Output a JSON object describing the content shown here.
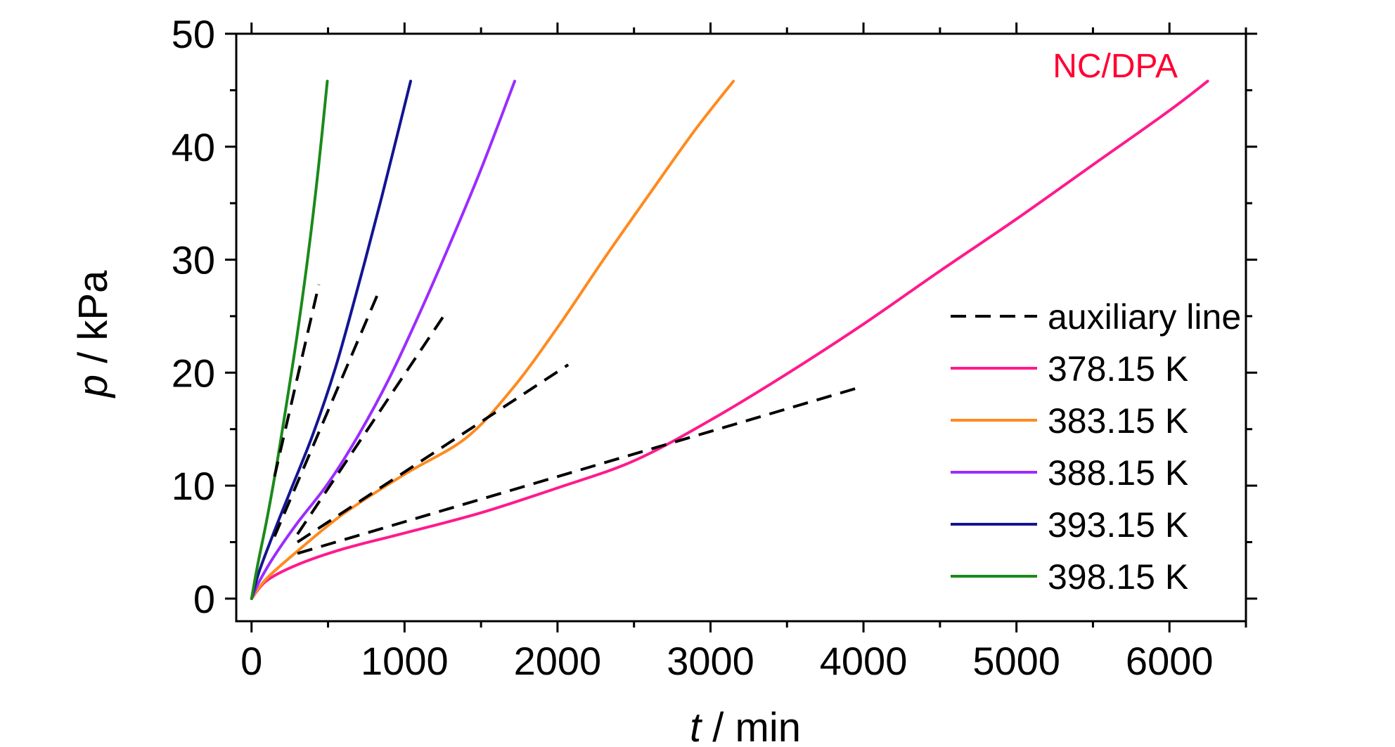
{
  "chart_data": {
    "type": "line",
    "xlabel": {
      "var": "t",
      "rest": " / min"
    },
    "ylabel": {
      "var": "p",
      "rest": " / kPa"
    },
    "xlim": [
      -100,
      6500
    ],
    "ylim": [
      -2,
      50
    ],
    "xticks": [
      0,
      1000,
      2000,
      3000,
      4000,
      5000,
      6000
    ],
    "xtick_labels": [
      "0",
      "1000",
      "2000",
      "3000",
      "4000",
      "5000",
      "6000"
    ],
    "yticks": [
      0,
      10,
      20,
      30,
      40,
      50
    ],
    "ytick_labels": [
      "0",
      "10",
      "20",
      "30",
      "40",
      "50"
    ],
    "x_minor_step": 500,
    "y_minor_step": 5,
    "grid": false,
    "legend_position": "right",
    "annotation": {
      "text": "NC/DPA",
      "color": "#ff0033"
    },
    "series": [
      {
        "name": "378.15 K",
        "color": "#ff1a8c",
        "style": "solid",
        "x": [
          0,
          100,
          300,
          600,
          1000,
          1500,
          2000,
          2500,
          3000,
          3500,
          4000,
          4500,
          5000,
          5500,
          6000,
          6250
        ],
        "y": [
          0,
          1.6,
          3.0,
          4.4,
          5.8,
          7.6,
          9.8,
          12.2,
          15.8,
          19.9,
          24.3,
          29.0,
          33.6,
          38.4,
          43.2,
          45.8
        ]
      },
      {
        "name": "383.15 K",
        "color": "#ff8a1f",
        "style": "solid",
        "x": [
          0,
          100,
          300,
          600,
          1000,
          1400,
          1700,
          2000,
          2300,
          2600,
          2900,
          3150
        ],
        "y": [
          0,
          1.8,
          4.2,
          7.5,
          11.0,
          14.2,
          18.5,
          24.0,
          30.0,
          35.8,
          41.5,
          45.8
        ]
      },
      {
        "name": "388.15 K",
        "color": "#9b2cff",
        "style": "solid",
        "x": [
          0,
          50,
          150,
          300,
          500,
          700,
          900,
          1100,
          1300,
          1500,
          1720
        ],
        "y": [
          0,
          1.5,
          3.8,
          6.7,
          10.2,
          14.5,
          19.5,
          25.3,
          31.5,
          38.0,
          45.8
        ]
      },
      {
        "name": "393.15 K",
        "color": "#141493",
        "style": "solid",
        "x": [
          0,
          50,
          150,
          250,
          400,
          550,
          700,
          850,
          1040
        ],
        "y": [
          0,
          2.4,
          6.0,
          9.4,
          14.5,
          20.5,
          27.8,
          35.5,
          45.8
        ]
      },
      {
        "name": "398.15 K",
        "color": "#1a8a1a",
        "style": "solid",
        "x": [
          0,
          40,
          100,
          160,
          220,
          300,
          380,
          440,
          495
        ],
        "y": [
          0,
          3.0,
          7.0,
          11.5,
          16.5,
          23.5,
          31.5,
          38.5,
          45.8
        ]
      },
      {
        "name": "auxiliary line",
        "color": "#000000",
        "style": "dashed",
        "segments": [
          {
            "x": [
              300,
              4000
            ],
            "y": [
              4.0,
              18.8
            ]
          },
          {
            "x": [
              300,
              2070
            ],
            "y": [
              5.0,
              20.7
            ]
          },
          {
            "x": [
              300,
              1250
            ],
            "y": [
              5.7,
              24.9
            ]
          },
          {
            "x": [
              150,
              820
            ],
            "y": [
              5.5,
              26.8
            ]
          },
          {
            "x": [
              150,
              440
            ],
            "y": [
              10.8,
              27.8
            ]
          }
        ]
      }
    ],
    "legend_order": [
      "auxiliary line",
      "378.15 K",
      "383.15 K",
      "388.15 K",
      "393.15 K",
      "398.15 K"
    ]
  }
}
